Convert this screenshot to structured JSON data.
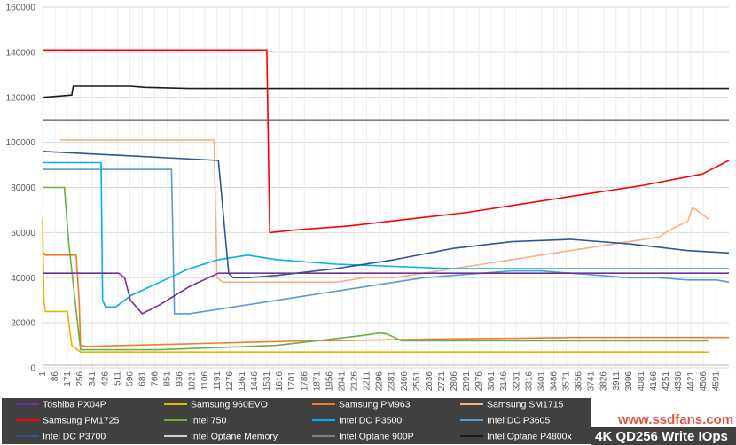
{
  "chart_data": {
    "type": "line",
    "title": "4K QD256 Write IOps",
    "watermark": "www.ssdfans.com",
    "ylim": [
      0,
      160000
    ],
    "yticks": [
      0,
      20000,
      40000,
      60000,
      80000,
      100000,
      120000,
      140000,
      160000
    ],
    "xlim": [
      1,
      4680
    ],
    "xticks": [
      1,
      86,
      171,
      256,
      341,
      426,
      511,
      596,
      681,
      766,
      851,
      936,
      1021,
      1106,
      1191,
      1276,
      1361,
      1446,
      1531,
      1616,
      1701,
      1786,
      1871,
      1956,
      2041,
      2126,
      2211,
      2296,
      2381,
      2466,
      2551,
      2636,
      2721,
      2806,
      2891,
      2976,
      3061,
      3146,
      3231,
      3316,
      3401,
      3486,
      3571,
      3656,
      3741,
      3826,
      3911,
      3996,
      4081,
      4166,
      4251,
      4336,
      4421,
      4506,
      4591
    ],
    "grid": true,
    "legend_position": "bottom",
    "series": [
      {
        "name": "Toshiba PX04P",
        "color": "#7030a0",
        "x": [
          1,
          40,
          60,
          520,
          560,
          600,
          680,
          800,
          1000,
          1200,
          1400,
          1600,
          2000,
          2400,
          2800,
          3200,
          3600,
          4000,
          4400,
          4680
        ],
        "values": [
          42000,
          42000,
          42000,
          42000,
          40000,
          30000,
          24000,
          28000,
          36000,
          42000,
          42000,
          42000,
          42000,
          42000,
          42000,
          42000,
          42000,
          42000,
          42000,
          42000
        ]
      },
      {
        "name": "Samsung 960EVO",
        "color": "#e2b700",
        "x": [
          1,
          10,
          20,
          170,
          200,
          260,
          400,
          800,
          1500,
          2500,
          3500,
          4400,
          4540
        ],
        "values": [
          66000,
          30000,
          25000,
          25000,
          10000,
          7000,
          7000,
          7000,
          7000,
          7000,
          7000,
          7000,
          7000
        ]
      },
      {
        "name": "Samsung PM963",
        "color": "#ed7d31",
        "x": [
          1,
          10,
          20,
          230,
          250,
          260,
          300,
          600,
          900,
          1200,
          1500,
          1800,
          2100,
          2400,
          2700,
          3000,
          3300,
          3600,
          3900,
          4200,
          4500,
          4680
        ],
        "values": [
          51000,
          51000,
          50000,
          50000,
          30000,
          10000,
          9500,
          10000,
          10500,
          11000,
          11500,
          12000,
          12200,
          12500,
          12800,
          13000,
          13200,
          13500,
          13500,
          13500,
          13500,
          13500
        ]
      },
      {
        "name": "Samsung SM1715",
        "color": "#f4b183",
        "x": [
          120,
          200,
          1170,
          1190,
          1230,
          1400,
          1600,
          1800,
          2000,
          2200,
          2400,
          2600,
          2800,
          3000,
          3200,
          3400,
          3600,
          3800,
          4000,
          4200,
          4300,
          4400,
          4430,
          4460,
          4540
        ],
        "values": [
          101000,
          101000,
          101000,
          40000,
          38000,
          38000,
          38000,
          38000,
          38000,
          40000,
          40000,
          42000,
          44000,
          46000,
          48000,
          50000,
          52000,
          54000,
          56000,
          58000,
          62000,
          65000,
          71000,
          70000,
          66000
        ]
      },
      {
        "name": "Samsung PM1725",
        "color": "#ff0000",
        "x": [
          1,
          1530,
          1550,
          1700,
          2100,
          2500,
          2900,
          3300,
          3700,
          4100,
          4500,
          4680
        ],
        "values": [
          141000,
          141000,
          60000,
          61000,
          63000,
          66000,
          69000,
          73000,
          77000,
          81000,
          86000,
          92000
        ]
      },
      {
        "name": "Intel 750",
        "color": "#70ad47",
        "x": [
          1,
          150,
          180,
          260,
          400,
          800,
          1200,
          1600,
          2000,
          2200,
          2300,
          2350,
          2450,
          2800,
          3200,
          3600,
          4000,
          4400,
          4540
        ],
        "values": [
          80000,
          80000,
          55000,
          8000,
          8000,
          8000,
          9000,
          10000,
          13000,
          14500,
          15500,
          15000,
          12000,
          12000,
          12000,
          12000,
          12000,
          12000,
          12000
        ]
      },
      {
        "name": "Intel DC P3500",
        "color": "#00b0f0",
        "x": [
          1,
          400,
          410,
          430,
          500,
          600,
          800,
          1000,
          1200,
          1400,
          1600,
          2000,
          2400,
          2800,
          3200,
          3600,
          4000,
          4400,
          4680
        ],
        "values": [
          91000,
          91000,
          30000,
          27000,
          27000,
          32000,
          38000,
          44000,
          48000,
          50000,
          48000,
          46000,
          45000,
          44000,
          44000,
          44000,
          44000,
          44000,
          44000
        ]
      },
      {
        "name": "Intel DC P3605",
        "color": "#5b9bd5",
        "x": [
          1,
          880,
          900,
          1000,
          1200,
          1400,
          1600,
          1800,
          2000,
          2200,
          2400,
          2600,
          2800,
          3000,
          3200,
          3400,
          3600,
          3800,
          4000,
          4200,
          4400,
          4600,
          4680
        ],
        "values": [
          88000,
          88000,
          24000,
          24000,
          26000,
          28000,
          30000,
          32000,
          34000,
          36000,
          38000,
          40000,
          41000,
          42000,
          43000,
          43000,
          42000,
          41000,
          40000,
          40000,
          39000,
          39000,
          38000
        ]
      },
      {
        "name": "Intel DC P3700",
        "color": "#2f5597",
        "x": [
          1,
          1200,
          1270,
          1300,
          1400,
          1600,
          2000,
          2400,
          2800,
          3200,
          3600,
          4000,
          4400,
          4680
        ],
        "values": [
          96000,
          92000,
          42000,
          40000,
          40000,
          41000,
          44000,
          48000,
          53000,
          56000,
          57000,
          55000,
          52000,
          51000
        ]
      },
      {
        "name": "Intel Optane Memory",
        "color": "#d0d0d0",
        "x": [
          1,
          4680
        ],
        "values": [
          1200,
          1200
        ]
      },
      {
        "name": "Intel Optane 900P",
        "color": "#808080",
        "x": [
          1,
          4680
        ],
        "values": [
          110000,
          110000
        ]
      },
      {
        "name": "Intel Optane P4800x",
        "color": "#1a1a1a",
        "x": [
          1,
          200,
          210,
          600,
          700,
          1000,
          1500,
          2000,
          3000,
          4000,
          4680
        ],
        "values": [
          120000,
          121000,
          125000,
          125000,
          124500,
          124000,
          124000,
          124000,
          124000,
          124000,
          124000
        ]
      }
    ]
  }
}
